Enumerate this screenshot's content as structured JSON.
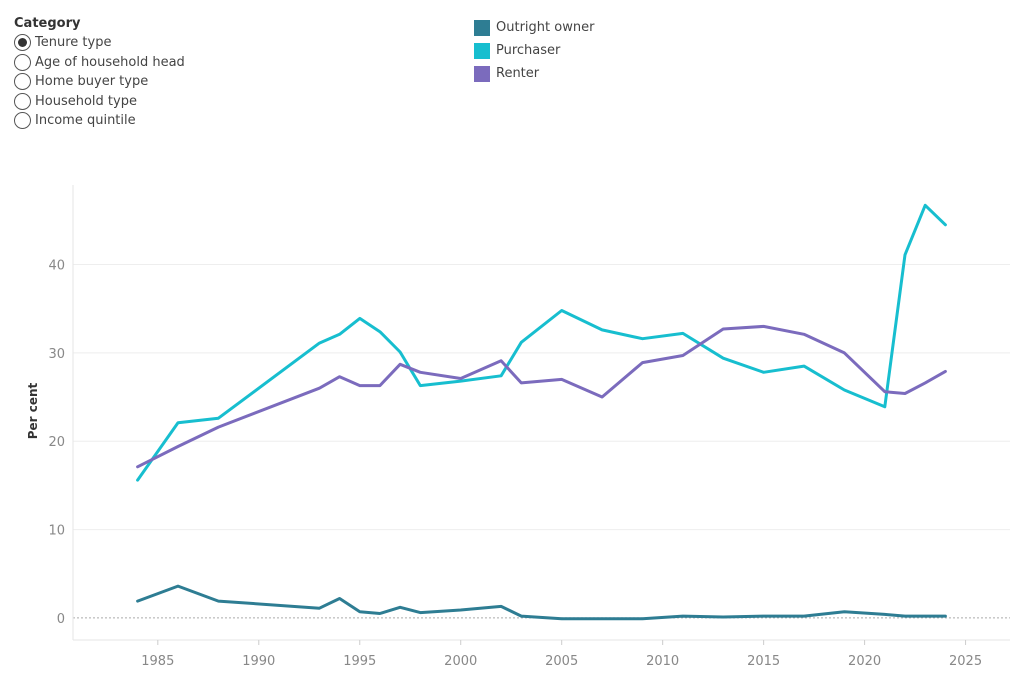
{
  "category": {
    "title": "Category",
    "options": [
      {
        "label": "Tenure type",
        "selected": true
      },
      {
        "label": "Age of household head",
        "selected": false
      },
      {
        "label": "Home buyer type",
        "selected": false
      },
      {
        "label": "Household type",
        "selected": false
      },
      {
        "label": "Income quintile",
        "selected": false
      }
    ]
  },
  "legend": [
    {
      "label": "Outright owner",
      "color": "#2e7d93"
    },
    {
      "label": "Purchaser",
      "color": "#17becf"
    },
    {
      "label": "Renter",
      "color": "#7b6bbd"
    }
  ],
  "chart_data": {
    "type": "line",
    "ylabel": "Per cent",
    "xlabel": "",
    "xlim": [
      1980.8,
      2027.2
    ],
    "ylim": [
      -2.5,
      49
    ],
    "x_ticks": [
      1985,
      1990,
      1995,
      2000,
      2005,
      2010,
      2015,
      2020,
      2025
    ],
    "y_ticks": [
      0,
      10,
      20,
      30,
      40
    ],
    "grid": true,
    "series": [
      {
        "name": "Outright owner",
        "color": "#2e7d93",
        "points": [
          [
            1984,
            1.9
          ],
          [
            1986,
            3.6
          ],
          [
            1988,
            1.9
          ],
          [
            1993,
            1.1
          ],
          [
            1994,
            2.2
          ],
          [
            1995,
            0.7
          ],
          [
            1996,
            0.5
          ],
          [
            1997,
            1.2
          ],
          [
            1998,
            0.6
          ],
          [
            2000,
            0.9
          ],
          [
            2002,
            1.3
          ],
          [
            2003,
            0.2
          ],
          [
            2005,
            -0.1
          ],
          [
            2007,
            -0.1
          ],
          [
            2009,
            -0.1
          ],
          [
            2011,
            0.2
          ],
          [
            2013,
            0.1
          ],
          [
            2015,
            0.2
          ],
          [
            2017,
            0.2
          ],
          [
            2019,
            0.7
          ],
          [
            2021,
            0.4
          ],
          [
            2022,
            0.2
          ],
          [
            2023,
            0.2
          ],
          [
            2024,
            0.2
          ]
        ]
      },
      {
        "name": "Purchaser",
        "color": "#17becf",
        "points": [
          [
            1984,
            15.6
          ],
          [
            1986,
            22.1
          ],
          [
            1988,
            22.6
          ],
          [
            1993,
            31.1
          ],
          [
            1994,
            32.1
          ],
          [
            1995,
            33.9
          ],
          [
            1996,
            32.4
          ],
          [
            1997,
            30.1
          ],
          [
            1998,
            26.3
          ],
          [
            2000,
            26.8
          ],
          [
            2002,
            27.4
          ],
          [
            2003,
            31.2
          ],
          [
            2005,
            34.8
          ],
          [
            2007,
            32.6
          ],
          [
            2009,
            31.6
          ],
          [
            2011,
            32.2
          ],
          [
            2013,
            29.4
          ],
          [
            2015,
            27.8
          ],
          [
            2017,
            28.5
          ],
          [
            2019,
            25.8
          ],
          [
            2021,
            23.9
          ],
          [
            2022,
            41.1
          ],
          [
            2023,
            46.7
          ],
          [
            2024,
            44.5
          ]
        ]
      },
      {
        "name": "Renter",
        "color": "#7b6bbd",
        "points": [
          [
            1984,
            17.1
          ],
          [
            1986,
            19.4
          ],
          [
            1988,
            21.6
          ],
          [
            1993,
            26.0
          ],
          [
            1994,
            27.3
          ],
          [
            1995,
            26.3
          ],
          [
            1996,
            26.3
          ],
          [
            1997,
            28.7
          ],
          [
            1998,
            27.8
          ],
          [
            2000,
            27.1
          ],
          [
            2002,
            29.1
          ],
          [
            2003,
            26.6
          ],
          [
            2005,
            27.0
          ],
          [
            2007,
            25.0
          ],
          [
            2009,
            28.9
          ],
          [
            2011,
            29.7
          ],
          [
            2013,
            32.7
          ],
          [
            2015,
            33.0
          ],
          [
            2017,
            32.1
          ],
          [
            2019,
            30.0
          ],
          [
            2021,
            25.6
          ],
          [
            2022,
            25.4
          ],
          [
            2023,
            26.6
          ],
          [
            2024,
            27.9
          ]
        ]
      }
    ]
  }
}
